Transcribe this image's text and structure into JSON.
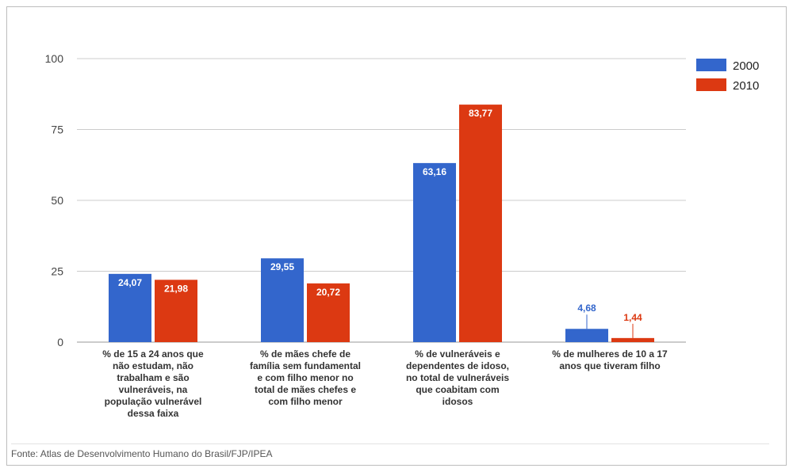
{
  "chart_data": {
    "type": "bar",
    "categories": [
      [
        "% de 15 a 24 anos que",
        "não estudam, não",
        "trabalham e são",
        "vulneráveis, na",
        "população vulnerável",
        "dessa faixa"
      ],
      [
        "% de mães chefe de",
        "família sem fundamental",
        "e com filho menor no",
        "total de mães chefes e",
        "com filho menor"
      ],
      [
        "% de vulneráveis e",
        "dependentes de idoso,",
        "no total de vulneráveis",
        "que coabitam com",
        "idosos"
      ],
      [
        "% de mulheres de 10 a 17",
        "anos que tiveram filho"
      ]
    ],
    "series": [
      {
        "name": "2000",
        "values": [
          24.07,
          29.55,
          63.16,
          4.68
        ],
        "labels": [
          "24,07",
          "29,55",
          "63,16",
          "4,68"
        ],
        "color": "#3366cc"
      },
      {
        "name": "2010",
        "values": [
          21.98,
          20.72,
          83.77,
          1.44
        ],
        "labels": [
          "21,98",
          "20,72",
          "83,77",
          "1,44"
        ],
        "color": "#dc3912"
      }
    ],
    "yticks": [
      0,
      25,
      50,
      75,
      100
    ],
    "ylim": [
      0,
      100
    ],
    "grid": true,
    "legend": "top-right"
  },
  "source": "Fonte: Atlas de Desenvolvimento Humano do Brasil/FJP/IPEA"
}
